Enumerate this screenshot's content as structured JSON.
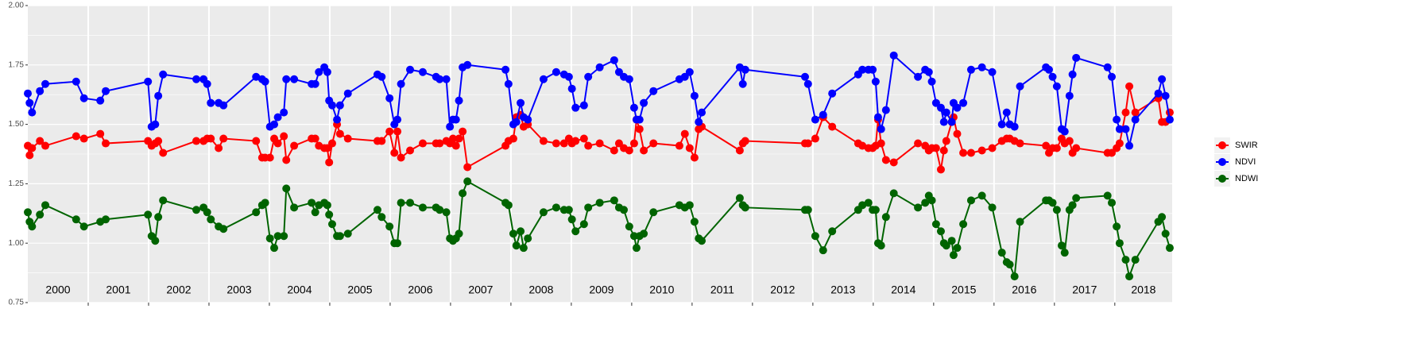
{
  "chart_data": {
    "type": "line",
    "x": [
      2000.0,
      2000.03,
      2000.07,
      2000.2,
      2000.29,
      2000.8,
      2000.93,
      2001.2,
      2001.29,
      2001.99,
      2002.05,
      2002.11,
      2002.16,
      2002.24,
      2002.79,
      2002.91,
      2002.97,
      2003.03,
      2003.16,
      2003.24,
      2003.78,
      2003.88,
      2003.93,
      2004.01,
      2004.08,
      2004.14,
      2004.24,
      2004.28,
      2004.41,
      2004.7,
      2004.76,
      2004.82,
      2004.91,
      2004.96,
      2004.99,
      2005.04,
      2005.12,
      2005.17,
      2005.3,
      2005.79,
      2005.86,
      2005.99,
      2006.07,
      2006.12,
      2006.18,
      2006.33,
      2006.54,
      2006.76,
      2006.82,
      2006.93,
      2006.99,
      2007.04,
      2007.09,
      2007.14,
      2007.2,
      2007.28,
      2007.91,
      2007.96,
      2008.04,
      2008.09,
      2008.16,
      2008.21,
      2008.28,
      2008.54,
      2008.75,
      2008.88,
      2008.96,
      2009.01,
      2009.07,
      2009.21,
      2009.28,
      2009.47,
      2009.71,
      2009.79,
      2009.87,
      2009.96,
      2010.04,
      2010.08,
      2010.13,
      2010.2,
      2010.36,
      2010.79,
      2010.88,
      2010.96,
      2011.04,
      2011.11,
      2011.16,
      2011.79,
      2011.84,
      2011.88,
      2012.87,
      2012.92,
      2013.04,
      2013.17,
      2013.32,
      2013.75,
      2013.82,
      2013.92,
      2013.99,
      2014.04,
      2014.08,
      2014.13,
      2014.21,
      2014.34,
      2014.74,
      2014.86,
      2014.92,
      2014.97,
      2015.04,
      2015.12,
      2015.17,
      2015.21,
      2015.3,
      2015.33,
      2015.39,
      2015.49,
      2015.62,
      2015.8,
      2015.97,
      2016.13,
      2016.21,
      2016.26,
      2016.34,
      2016.43,
      2016.86,
      2016.91,
      2016.97,
      2017.04,
      2017.12,
      2017.17,
      2017.25,
      2017.3,
      2017.36,
      2017.88,
      2017.95,
      2018.03,
      2018.08,
      2018.18,
      2018.24,
      2018.34,
      2018.72,
      2018.78,
      2018.84,
      2018.91
    ],
    "series": [
      {
        "name": "SWIR",
        "color": "#ff0000",
        "values": [
          1.41,
          1.37,
          1.4,
          1.43,
          1.41,
          1.45,
          1.44,
          1.46,
          1.42,
          1.43,
          1.41,
          1.42,
          1.43,
          1.38,
          1.43,
          1.43,
          1.44,
          1.44,
          1.4,
          1.44,
          1.43,
          1.36,
          1.36,
          1.36,
          1.44,
          1.42,
          1.45,
          1.35,
          1.41,
          1.44,
          1.44,
          1.41,
          1.4,
          1.4,
          1.34,
          1.42,
          1.5,
          1.46,
          1.44,
          1.43,
          1.43,
          1.47,
          1.38,
          1.47,
          1.36,
          1.39,
          1.42,
          1.42,
          1.42,
          1.43,
          1.42,
          1.44,
          1.41,
          1.44,
          1.47,
          1.32,
          1.41,
          1.43,
          1.44,
          1.53,
          1.54,
          1.49,
          1.5,
          1.43,
          1.42,
          1.42,
          1.44,
          1.42,
          1.43,
          1.44,
          1.41,
          1.42,
          1.39,
          1.42,
          1.4,
          1.39,
          1.42,
          1.52,
          1.48,
          1.39,
          1.42,
          1.41,
          1.46,
          1.4,
          1.36,
          1.48,
          1.49,
          1.39,
          1.42,
          1.43,
          1.42,
          1.42,
          1.44,
          1.53,
          1.49,
          1.42,
          1.41,
          1.4,
          1.4,
          1.41,
          1.52,
          1.42,
          1.35,
          1.34,
          1.42,
          1.41,
          1.39,
          1.4,
          1.4,
          1.31,
          1.39,
          1.43,
          1.51,
          1.53,
          1.46,
          1.38,
          1.38,
          1.39,
          1.4,
          1.43,
          1.44,
          1.44,
          1.43,
          1.42,
          1.41,
          1.38,
          1.4,
          1.4,
          1.44,
          1.42,
          1.43,
          1.38,
          1.4,
          1.38,
          1.38,
          1.4,
          1.42,
          1.55,
          1.66,
          1.55,
          1.61,
          1.51,
          1.51,
          1.55
        ]
      },
      {
        "name": "NDVI",
        "color": "#0000ff",
        "values": [
          1.63,
          1.59,
          1.55,
          1.64,
          1.67,
          1.68,
          1.61,
          1.6,
          1.64,
          1.68,
          1.49,
          1.5,
          1.62,
          1.71,
          1.69,
          1.69,
          1.67,
          1.59,
          1.59,
          1.58,
          1.7,
          1.69,
          1.68,
          1.49,
          1.5,
          1.53,
          1.55,
          1.69,
          1.69,
          1.67,
          1.67,
          1.72,
          1.74,
          1.72,
          1.6,
          1.58,
          1.52,
          1.58,
          1.63,
          1.71,
          1.7,
          1.61,
          1.5,
          1.52,
          1.67,
          1.73,
          1.72,
          1.7,
          1.69,
          1.69,
          1.49,
          1.52,
          1.52,
          1.6,
          1.74,
          1.75,
          1.73,
          1.67,
          1.5,
          1.51,
          1.59,
          1.53,
          1.52,
          1.69,
          1.72,
          1.71,
          1.7,
          1.65,
          1.57,
          1.58,
          1.7,
          1.74,
          1.77,
          1.72,
          1.7,
          1.69,
          1.57,
          1.52,
          1.52,
          1.59,
          1.64,
          1.69,
          1.7,
          1.72,
          1.62,
          1.51,
          1.55,
          1.74,
          1.67,
          1.73,
          1.7,
          1.67,
          1.52,
          1.54,
          1.63,
          1.71,
          1.73,
          1.73,
          1.73,
          1.68,
          1.53,
          1.48,
          1.56,
          1.79,
          1.7,
          1.73,
          1.72,
          1.68,
          1.59,
          1.57,
          1.51,
          1.55,
          1.51,
          1.59,
          1.57,
          1.59,
          1.73,
          1.74,
          1.72,
          1.5,
          1.55,
          1.5,
          1.49,
          1.66,
          1.74,
          1.73,
          1.7,
          1.66,
          1.48,
          1.47,
          1.62,
          1.71,
          1.78,
          1.74,
          1.7,
          1.52,
          1.48,
          1.48,
          1.41,
          1.52,
          1.63,
          1.69,
          1.62,
          1.52
        ]
      },
      {
        "name": "NDWI",
        "color": "#006400",
        "values": [
          1.13,
          1.09,
          1.07,
          1.12,
          1.16,
          1.1,
          1.07,
          1.09,
          1.1,
          1.12,
          1.03,
          1.01,
          1.11,
          1.18,
          1.14,
          1.15,
          1.13,
          1.1,
          1.07,
          1.06,
          1.13,
          1.16,
          1.17,
          1.02,
          0.98,
          1.03,
          1.03,
          1.23,
          1.15,
          1.17,
          1.13,
          1.16,
          1.17,
          1.16,
          1.12,
          1.08,
          1.03,
          1.03,
          1.04,
          1.14,
          1.11,
          1.07,
          1.0,
          1.0,
          1.17,
          1.17,
          1.15,
          1.15,
          1.14,
          1.13,
          1.02,
          1.01,
          1.02,
          1.04,
          1.21,
          1.26,
          1.17,
          1.16,
          1.04,
          0.99,
          1.05,
          0.98,
          1.02,
          1.13,
          1.15,
          1.14,
          1.14,
          1.1,
          1.05,
          1.08,
          1.15,
          1.17,
          1.18,
          1.15,
          1.14,
          1.07,
          1.03,
          0.98,
          1.03,
          1.04,
          1.13,
          1.16,
          1.15,
          1.16,
          1.09,
          1.02,
          1.01,
          1.19,
          1.16,
          1.15,
          1.14,
          1.14,
          1.03,
          0.97,
          1.05,
          1.14,
          1.16,
          1.17,
          1.14,
          1.14,
          1.0,
          0.99,
          1.11,
          1.21,
          1.15,
          1.17,
          1.2,
          1.18,
          1.08,
          1.05,
          1.0,
          0.99,
          1.01,
          0.95,
          0.98,
          1.08,
          1.18,
          1.2,
          1.15,
          0.96,
          0.92,
          0.91,
          0.86,
          1.09,
          1.18,
          1.18,
          1.17,
          1.14,
          0.99,
          0.96,
          1.14,
          1.16,
          1.19,
          1.2,
          1.17,
          1.07,
          1.0,
          0.93,
          0.86,
          0.93,
          1.09,
          1.11,
          1.04,
          0.98
        ]
      }
    ],
    "xlim": [
      2000,
      2018.95
    ],
    "xticks": [
      2001,
      2002,
      2003,
      2004,
      2005,
      2006,
      2007,
      2008,
      2009,
      2010,
      2011,
      2012,
      2013,
      2014,
      2015,
      2016,
      2017,
      2018
    ],
    "ylim": [
      0.75,
      2
    ],
    "yticks": [
      0.75,
      {
        "value": 1,
        "label": "1.00"
      },
      1.25,
      {
        "value": 1.5,
        "label": "1.50"
      },
      1.75,
      {
        "value": 2,
        "label": "2.00"
      }
    ],
    "annotations": [
      "2000",
      "2001",
      "2002",
      "2003",
      "2004",
      "2005",
      "2006",
      "2007",
      "2008",
      "2009",
      "2010",
      "2011",
      "2012",
      "2013",
      "2014",
      "2015",
      "2016",
      "2017",
      "2018"
    ],
    "grid": true,
    "legend": "right"
  }
}
